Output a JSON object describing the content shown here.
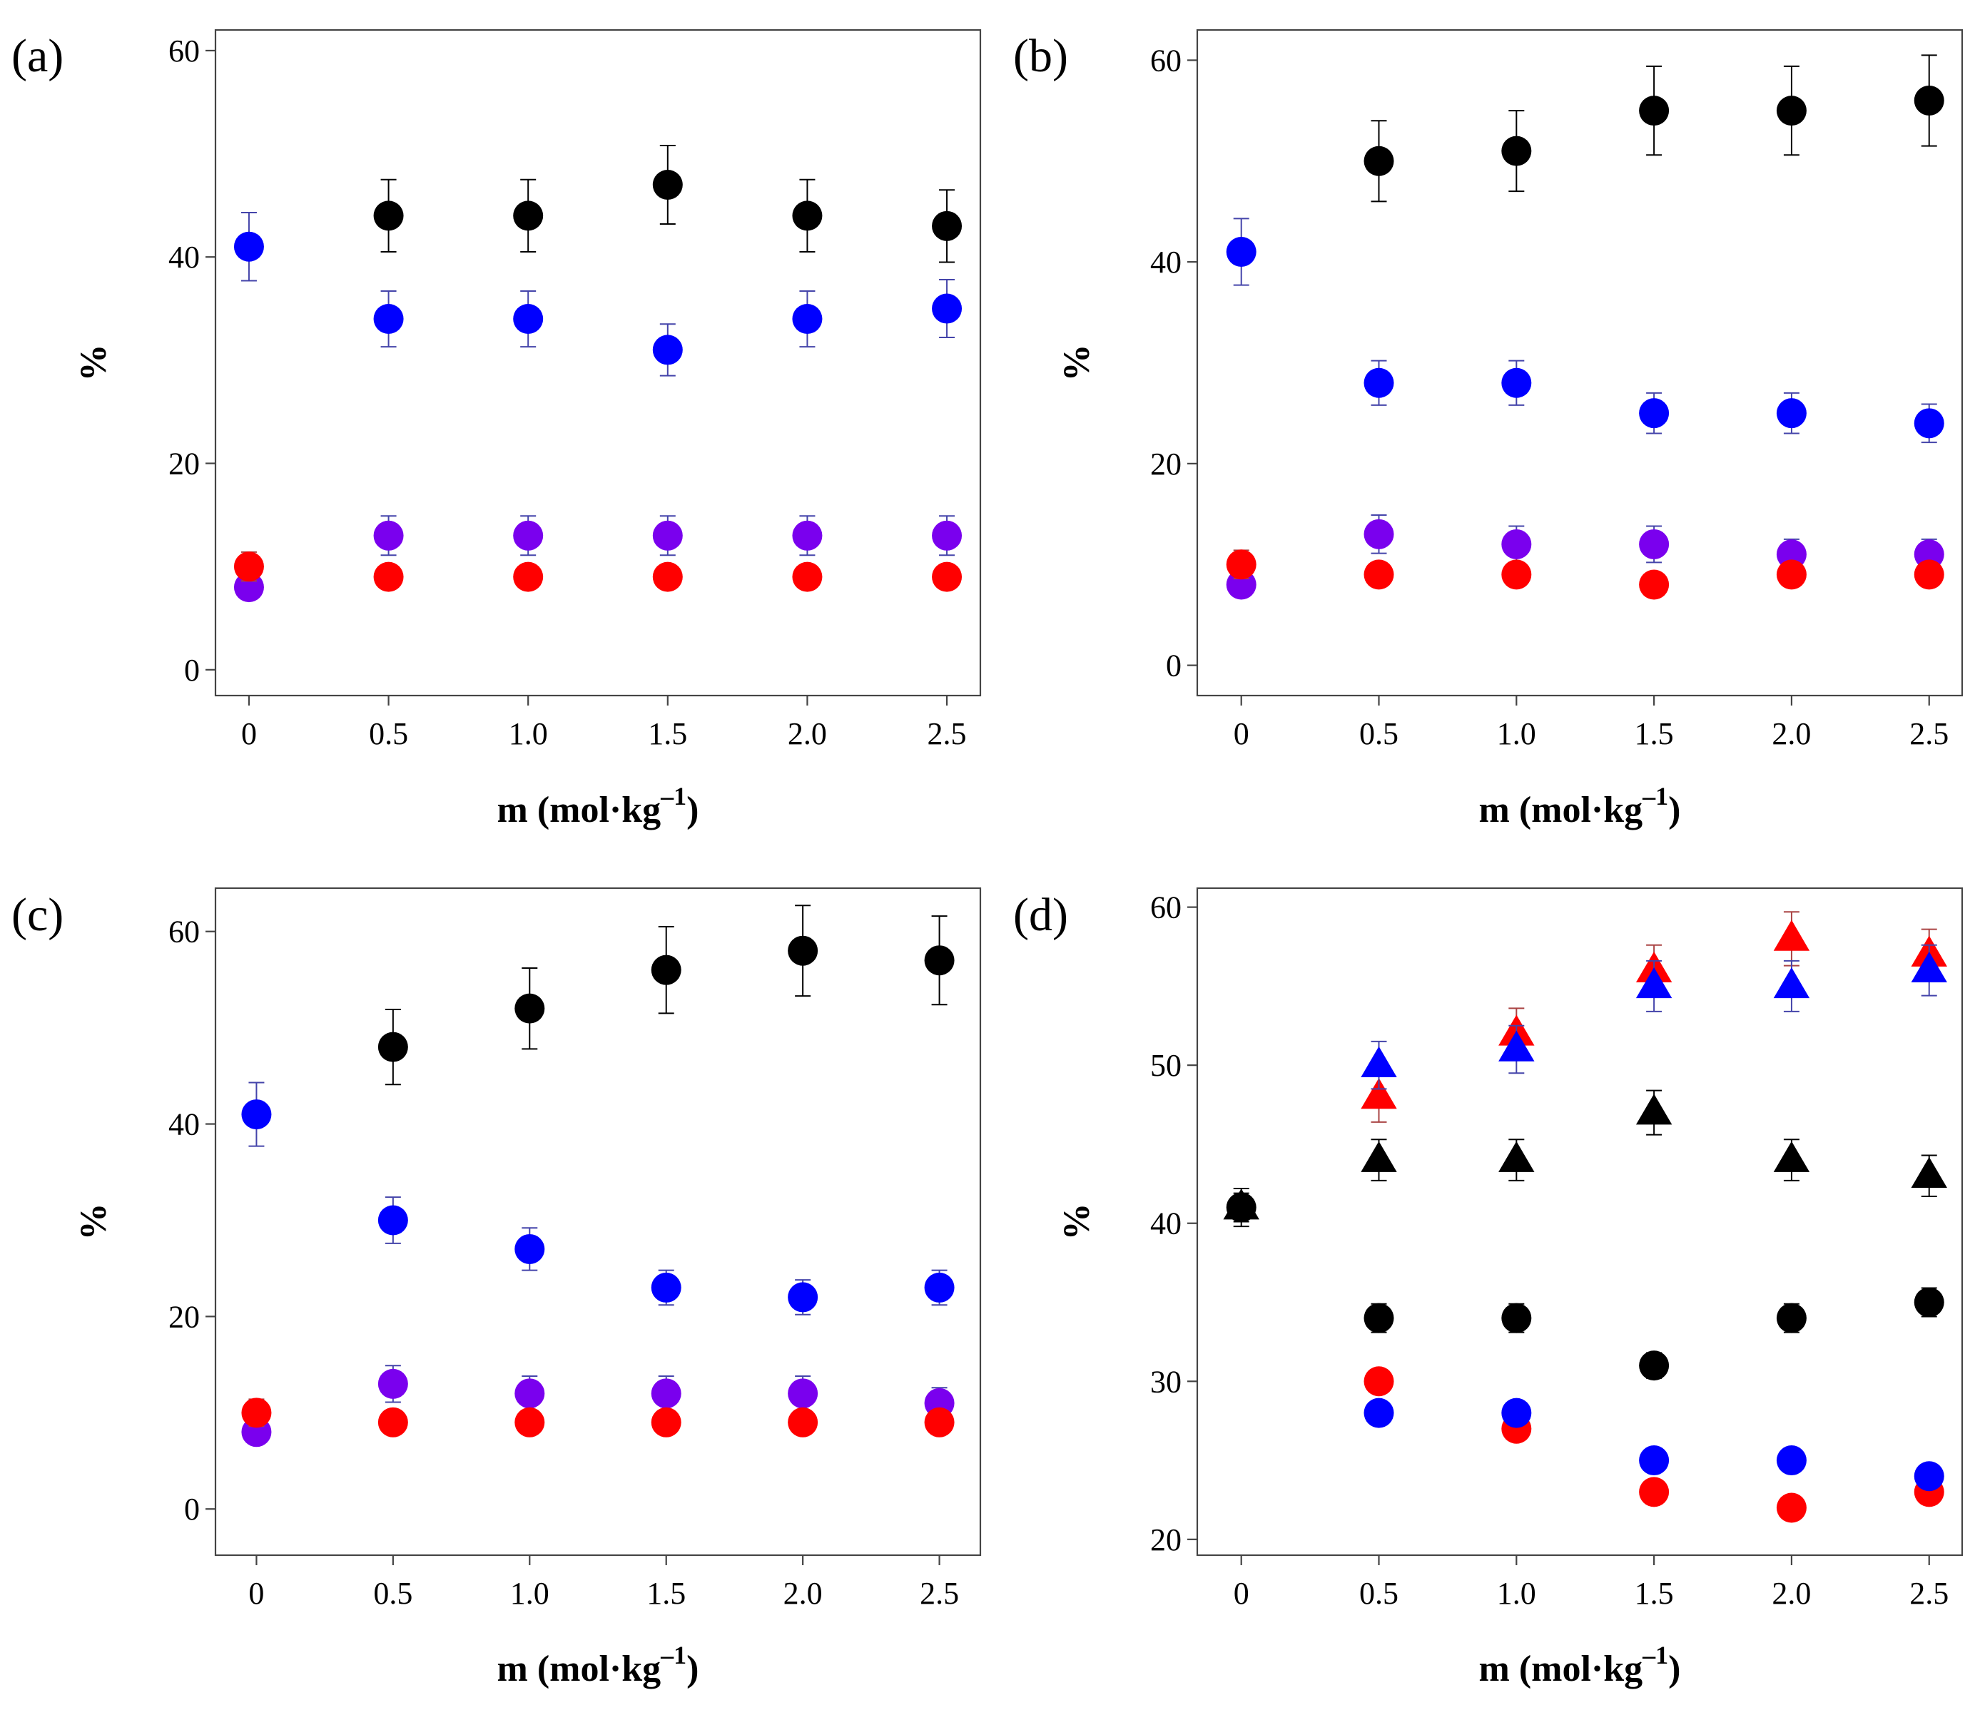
{
  "figure": {
    "xlabel": "m (mol·kg",
    "xlabel_sup": "–1",
    "xlabel_end": ")",
    "ylabel": "%"
  },
  "chart_data": [
    {
      "type": "scatter",
      "panel_label": "(a)",
      "x": [
        0,
        0.5,
        1.0,
        1.5,
        2.0,
        2.5
      ],
      "xticks": [
        0,
        0.5,
        1.0,
        1.5,
        2.0,
        2.5
      ],
      "xtick_labels": [
        "0",
        "0.5",
        "1.0",
        "1.5",
        "2.0",
        "2.5"
      ],
      "xlim": [
        -0.12,
        2.62
      ],
      "ylim": [
        -2.5,
        62
      ],
      "yticks": [
        0,
        20,
        40,
        60
      ],
      "ytick_labels": [
        "0",
        "20",
        "40",
        "60"
      ],
      "xlabel": "m (mol·kg–1)",
      "ylabel": "%",
      "grid": false,
      "series": [
        {
          "color": "#000000",
          "marker": "circle",
          "x": [
            0.5,
            1.0,
            1.5,
            2.0,
            2.5
          ],
          "values": [
            44,
            44,
            47,
            44,
            43
          ],
          "error": [
            3.5,
            3.5,
            3.8,
            3.5,
            3.5
          ],
          "err_color": "#000000"
        },
        {
          "color": "#0000ff",
          "marker": "circle",
          "x": [
            0,
            0.5,
            1.0,
            1.5,
            2.0,
            2.5
          ],
          "values": [
            41,
            34,
            34,
            31,
            34,
            35
          ],
          "error": [
            3.3,
            2.7,
            2.7,
            2.5,
            2.7,
            2.8
          ],
          "err_color": "#4444aa"
        },
        {
          "color": "#7a00ee",
          "marker": "circle",
          "x": [
            0,
            0.5,
            1.0,
            1.5,
            2.0,
            2.5
          ],
          "values": [
            8,
            13,
            13,
            13,
            13,
            13
          ],
          "error": [
            0.7,
            1.9,
            1.9,
            1.9,
            1.9,
            1.9
          ],
          "err_color": "#4444aa"
        },
        {
          "color": "#ff0000",
          "marker": "circle",
          "x": [
            0,
            0.5,
            1.0,
            1.5,
            2.0,
            2.5
          ],
          "values": [
            10,
            9,
            9,
            9,
            9,
            9
          ],
          "error": [
            1.4,
            0,
            0,
            0,
            0,
            0
          ],
          "err_color": "#aa4444"
        }
      ]
    },
    {
      "type": "scatter",
      "panel_label": "(b)",
      "x": [
        0,
        0.5,
        1.0,
        1.5,
        2.0,
        2.5
      ],
      "xticks": [
        0,
        0.5,
        1.0,
        1.5,
        2.0,
        2.5
      ],
      "xtick_labels": [
        "0",
        "0.5",
        "1.0",
        "1.5",
        "2.0",
        "2.5"
      ],
      "xlim": [
        -0.16,
        2.62
      ],
      "ylim": [
        -3,
        63
      ],
      "yticks": [
        0,
        20,
        40,
        60
      ],
      "ytick_labels": [
        "0",
        "20",
        "40",
        "60"
      ],
      "xlabel": "m (mol·kg–1)",
      "ylabel": "%",
      "grid": false,
      "series": [
        {
          "color": "#000000",
          "marker": "circle",
          "x": [
            0.5,
            1.0,
            1.5,
            2.0,
            2.5
          ],
          "values": [
            50,
            51,
            55,
            55,
            56
          ],
          "error": [
            4,
            4,
            4.4,
            4.4,
            4.5
          ],
          "err_color": "#000000"
        },
        {
          "color": "#0000ff",
          "marker": "circle",
          "x": [
            0,
            0.5,
            1.0,
            1.5,
            2.0,
            2.5
          ],
          "values": [
            41,
            28,
            28,
            25,
            25,
            24
          ],
          "error": [
            3.3,
            2.2,
            2.2,
            2,
            2,
            1.9
          ],
          "err_color": "#4444aa"
        },
        {
          "color": "#7a00ee",
          "marker": "circle",
          "x": [
            0,
            0.5,
            1.0,
            1.5,
            2.0,
            2.5
          ],
          "values": [
            8,
            13,
            12,
            12,
            11,
            11
          ],
          "error": [
            0.6,
            1.9,
            1.8,
            1.8,
            1.5,
            1.5
          ],
          "err_color": "#4444aa"
        },
        {
          "color": "#ff0000",
          "marker": "circle",
          "x": [
            0,
            0.5,
            1.0,
            1.5,
            2.0,
            2.5
          ],
          "values": [
            10,
            9,
            9,
            8,
            9,
            9
          ],
          "error": [
            1.4,
            0,
            0,
            0,
            0,
            0
          ],
          "err_color": "#aa4444"
        }
      ]
    },
    {
      "type": "scatter",
      "panel_label": "(c)",
      "x": [
        0,
        0.5,
        1.0,
        1.5,
        2.0,
        2.5
      ],
      "xticks": [
        0,
        0.5,
        1.0,
        1.5,
        2.0,
        2.5
      ],
      "xtick_labels": [
        "0",
        "0.5",
        "1.0",
        "1.5",
        "2.0",
        "2.5"
      ],
      "xlim": [
        -0.15,
        2.65
      ],
      "ylim": [
        -4.8,
        64.5
      ],
      "yticks": [
        0,
        20,
        40,
        60
      ],
      "ytick_labels": [
        "0",
        "20",
        "40",
        "60"
      ],
      "xlabel": "m (mol·kg–1)",
      "ylabel": "%",
      "grid": false,
      "series": [
        {
          "color": "#000000",
          "marker": "circle",
          "x": [
            0.5,
            1.0,
            1.5,
            2.0,
            2.5
          ],
          "values": [
            48,
            52,
            56,
            58,
            57
          ],
          "error": [
            3.9,
            4.2,
            4.5,
            4.7,
            4.6
          ],
          "err_color": "#000000"
        },
        {
          "color": "#0000ff",
          "marker": "circle",
          "x": [
            0,
            0.5,
            1.0,
            1.5,
            2.0,
            2.5
          ],
          "values": [
            41,
            30,
            27,
            23,
            22,
            23
          ],
          "error": [
            3.3,
            2.4,
            2.2,
            1.8,
            1.8,
            1.8
          ],
          "err_color": "#4444aa"
        },
        {
          "color": "#7a00ee",
          "marker": "circle",
          "x": [
            0,
            0.5,
            1.0,
            1.5,
            2.0,
            2.5
          ],
          "values": [
            8,
            13,
            12,
            12,
            12,
            11
          ],
          "error": [
            0.6,
            1.9,
            1.8,
            1.8,
            1.8,
            1.6
          ],
          "err_color": "#4444aa"
        },
        {
          "color": "#ff0000",
          "marker": "circle",
          "x": [
            0,
            0.5,
            1.0,
            1.5,
            2.0,
            2.5
          ],
          "values": [
            10,
            9,
            9,
            9,
            9,
            9
          ],
          "error": [
            1.4,
            0,
            0,
            0,
            0,
            0
          ],
          "err_color": "#aa4444"
        }
      ]
    },
    {
      "type": "scatter",
      "panel_label": "(d)",
      "x": [
        0,
        0.5,
        1.0,
        1.5,
        2.0,
        2.5
      ],
      "xticks": [
        0,
        0.5,
        1.0,
        1.5,
        2.0,
        2.5
      ],
      "xtick_labels": [
        "0",
        "0.5",
        "1.0",
        "1.5",
        "2.0",
        "2.5"
      ],
      "xlim": [
        -0.16,
        2.62
      ],
      "ylim": [
        19,
        61.2
      ],
      "yticks": [
        20,
        30,
        40,
        50,
        60
      ],
      "ytick_labels": [
        "20",
        "30",
        "40",
        "50",
        "60"
      ],
      "xlabel": "m (mol·kg–1)",
      "ylabel": "%",
      "grid": false,
      "series": [
        {
          "color": "#ff0000",
          "marker": "triangle",
          "x": [
            0.5,
            1.0,
            1.5,
            2.0,
            2.5
          ],
          "values": [
            48,
            52,
            56,
            58,
            57
          ],
          "error": [
            1.6,
            1.6,
            1.6,
            1.7,
            1.6
          ],
          "err_color": "#aa4444"
        },
        {
          "color": "#0000ff",
          "marker": "triangle",
          "x": [
            0.5,
            1.0,
            1.5,
            2.0,
            2.5
          ],
          "values": [
            50,
            51,
            55,
            55,
            56
          ],
          "error": [
            1.5,
            1.5,
            1.6,
            1.6,
            1.6
          ],
          "err_color": "#4444aa"
        },
        {
          "color": "#000000",
          "marker": "triangle",
          "x": [
            0,
            0.5,
            1.0,
            1.5,
            2.0,
            2.5
          ],
          "values": [
            41,
            44,
            44,
            47,
            44,
            43
          ],
          "error": [
            1.2,
            1.3,
            1.3,
            1.4,
            1.3,
            1.3
          ],
          "err_color": "#000000"
        },
        {
          "color": "#000000",
          "marker": "circle",
          "x": [
            0,
            0.5,
            1.0,
            1.5,
            2.0,
            2.5
          ],
          "values": [
            41,
            34,
            34,
            31,
            34,
            35
          ],
          "error": [
            0.9,
            0.9,
            0.9,
            0.8,
            0.9,
            0.9
          ],
          "err_color": "#000000"
        },
        {
          "color": "#ff0000",
          "marker": "circle",
          "x": [
            0.5,
            1.0,
            1.5,
            2.0,
            2.5
          ],
          "values": [
            30,
            27,
            23,
            22,
            23
          ],
          "error": [
            0.6,
            0,
            0,
            0,
            0
          ],
          "err_color": "#aa4444"
        },
        {
          "color": "#0000ff",
          "marker": "circle",
          "x": [
            0.5,
            1.0,
            1.5,
            2.0,
            2.5
          ],
          "values": [
            28,
            28,
            25,
            25,
            24
          ],
          "error": [
            0,
            0.6,
            0,
            0,
            0
          ],
          "err_color": "#4444aa"
        }
      ]
    }
  ]
}
